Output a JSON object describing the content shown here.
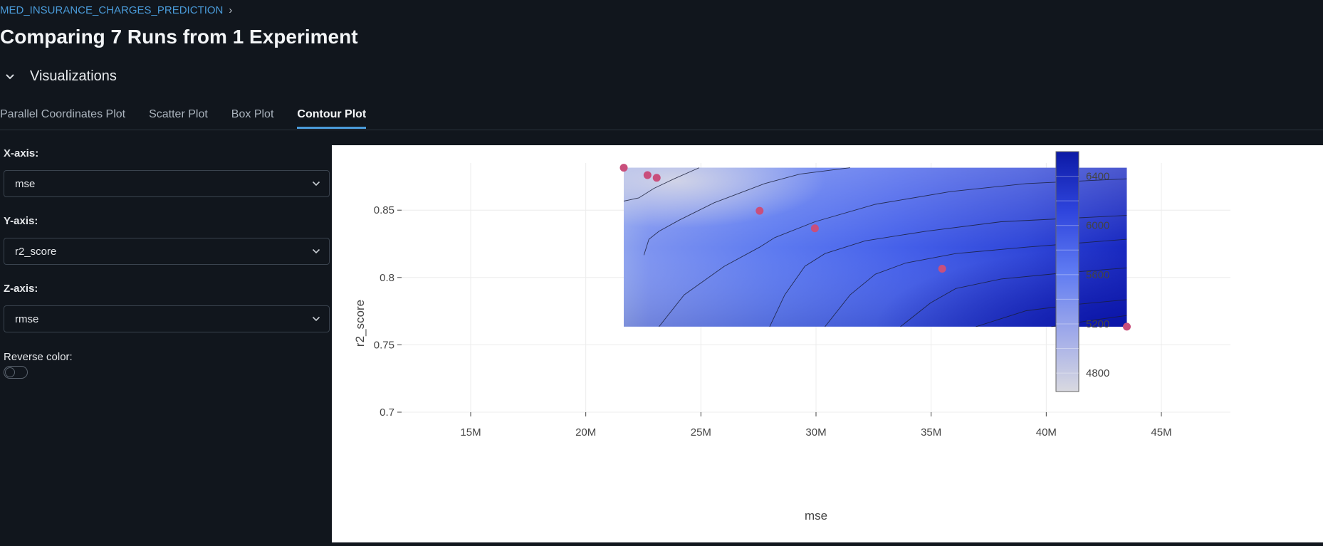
{
  "breadcrumb": {
    "experiment": "MED_INSURANCE_CHARGES_PREDICTION",
    "separator": "›"
  },
  "page": {
    "title": "Comparing 7 Runs from 1 Experiment"
  },
  "section": {
    "label": "Visualizations",
    "chevron_icon": "chevron-down-icon"
  },
  "tabs": [
    {
      "label": "Parallel Coordinates Plot",
      "active": false
    },
    {
      "label": "Scatter Plot",
      "active": false
    },
    {
      "label": "Box Plot",
      "active": false
    },
    {
      "label": "Contour Plot",
      "active": true
    }
  ],
  "controls": {
    "x_axis": {
      "label": "X-axis:",
      "value": "mse"
    },
    "y_axis": {
      "label": "Y-axis:",
      "value": "r2_score"
    },
    "z_axis": {
      "label": "Z-axis:",
      "value": "rmse"
    },
    "reverse_color": {
      "label": "Reverse color:",
      "on": false
    }
  },
  "colors": {
    "accent": "#4a9bd9",
    "marker": "#c94f7c",
    "scale_low": "#d7d7df",
    "scale_high": "#0c1aa6"
  },
  "chart_data": {
    "type": "scatter",
    "subtype": "contour",
    "title": "",
    "xlabel": "mse",
    "ylabel": "r2_score",
    "xlim": [
      12000000,
      48000000
    ],
    "ylim": [
      0.7,
      0.885
    ],
    "x_ticks": [
      {
        "value": 15000000,
        "label": "15M"
      },
      {
        "value": 20000000,
        "label": "20M"
      },
      {
        "value": 25000000,
        "label": "25M"
      },
      {
        "value": 30000000,
        "label": "30M"
      },
      {
        "value": 35000000,
        "label": "35M"
      },
      {
        "value": 40000000,
        "label": "40M"
      },
      {
        "value": 45000000,
        "label": "45M"
      }
    ],
    "y_ticks": [
      {
        "value": 0.7,
        "label": "0.7"
      },
      {
        "value": 0.75,
        "label": "0.75"
      },
      {
        "value": 0.8,
        "label": "0.8"
      },
      {
        "value": 0.85,
        "label": "0.85"
      }
    ],
    "points": [
      {
        "x": 21650000,
        "y": 0.8815
      },
      {
        "x": 22680000,
        "y": 0.876
      },
      {
        "x": 23080000,
        "y": 0.874
      },
      {
        "x": 27550000,
        "y": 0.8495
      },
      {
        "x": 29950000,
        "y": 0.8365
      },
      {
        "x": 35480000,
        "y": 0.8065
      },
      {
        "x": 43500000,
        "y": 0.7635
      }
    ],
    "z_label": "rmse",
    "z_range": [
      4650,
      6600
    ],
    "colorbar_ticks": [
      {
        "value": 4800,
        "label": "4800"
      },
      {
        "value": 5200,
        "label": "5200"
      },
      {
        "value": 5600,
        "label": "5600"
      },
      {
        "value": 6000,
        "label": "6000"
      },
      {
        "value": 6400,
        "label": "6400"
      }
    ],
    "grid": true,
    "legend": "colorbar-right"
  }
}
